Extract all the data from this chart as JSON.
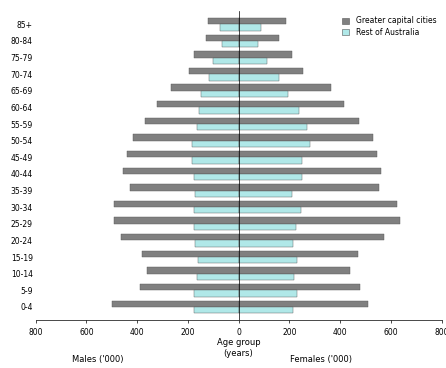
{
  "age_groups": [
    "0-4",
    "5-9",
    "10-14",
    "15-19",
    "20-24",
    "25-29",
    "30-34",
    "35-39",
    "40-44",
    "45-49",
    "50-54",
    "55-59",
    "60-64",
    "65-69",
    "70-74",
    "75-79",
    "80-84",
    "85+"
  ],
  "males_capital": [
    500,
    390,
    360,
    380,
    465,
    490,
    490,
    430,
    455,
    440,
    415,
    370,
    320,
    265,
    195,
    175,
    130,
    120
  ],
  "males_rest": [
    175,
    175,
    165,
    160,
    170,
    175,
    175,
    170,
    175,
    185,
    185,
    165,
    155,
    150,
    115,
    100,
    65,
    75
  ],
  "females_capital": [
    510,
    480,
    440,
    470,
    575,
    635,
    625,
    555,
    560,
    545,
    530,
    475,
    415,
    365,
    255,
    210,
    160,
    185
  ],
  "females_rest": [
    215,
    230,
    220,
    230,
    215,
    225,
    245,
    210,
    250,
    250,
    280,
    270,
    240,
    195,
    160,
    110,
    75,
    90
  ],
  "color_capital": "#808080",
  "color_rest": "#b0e8e8",
  "xlabel_center": "Age group\n(years)",
  "xlabel_left": "Males ('000)",
  "xlabel_right": "Females ('000)",
  "xlim": 800,
  "legend_capital": "Greater capital cities",
  "legend_rest": "Rest of Australia",
  "background_color": "#ffffff"
}
